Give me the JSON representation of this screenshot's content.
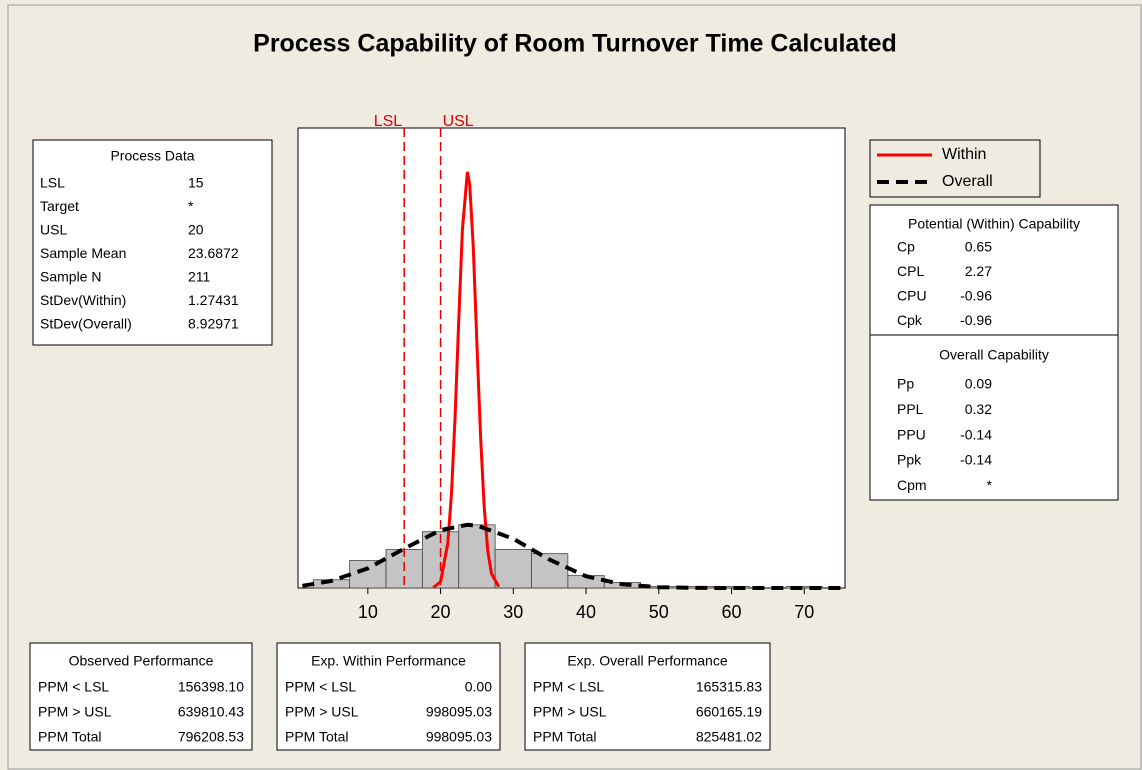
{
  "title": "Process Capability of Room Turnover Time Calculated",
  "process_data": {
    "header": "Process Data",
    "rows": [
      [
        "LSL",
        "15"
      ],
      [
        "Target",
        "*"
      ],
      [
        "USL",
        "20"
      ],
      [
        "Sample Mean",
        "23.6872"
      ],
      [
        "Sample N",
        "211"
      ],
      [
        "StDev(Within)",
        "1.27431"
      ],
      [
        "StDev(Overall)",
        "8.92971"
      ]
    ]
  },
  "potential_capability": {
    "header": "Potential (Within) Capability",
    "rows": [
      [
        "Cp",
        "0.65"
      ],
      [
        "CPL",
        "2.27"
      ],
      [
        "CPU",
        "-0.96"
      ],
      [
        "Cpk",
        "-0.96"
      ]
    ]
  },
  "overall_capability": {
    "header": "Overall Capability",
    "rows": [
      [
        "Pp",
        "0.09"
      ],
      [
        "PPL",
        "0.32"
      ],
      [
        "PPU",
        "-0.14"
      ],
      [
        "Ppk",
        "-0.14"
      ],
      [
        "Cpm",
        "*"
      ]
    ]
  },
  "performance": [
    {
      "header": "Observed Performance",
      "rows": [
        [
          "PPM < LSL",
          "156398.10"
        ],
        [
          "PPM > USL",
          "639810.43"
        ],
        [
          "PPM Total",
          "796208.53"
        ]
      ]
    },
    {
      "header": "Exp. Within Performance",
      "rows": [
        [
          "PPM < LSL",
          "0.00"
        ],
        [
          "PPM > USL",
          "998095.03"
        ],
        [
          "PPM Total",
          "998095.03"
        ]
      ]
    },
    {
      "header": "Exp. Overall Performance",
      "rows": [
        [
          "PPM < LSL",
          "165315.83"
        ],
        [
          "PPM > USL",
          "660165.19"
        ],
        [
          "PPM Total",
          "825481.02"
        ]
      ]
    }
  ],
  "chart_data": {
    "type": "histogram",
    "bins": [
      2.5,
      7.5,
      12.5,
      17.5,
      22.5,
      27.5,
      32.5,
      37.5,
      42.5,
      47.5,
      52.5,
      57.5,
      62.5,
      67.5,
      72.5
    ],
    "counts": [
      6,
      20,
      28,
      41,
      46,
      28,
      25,
      9,
      4,
      1,
      1,
      1,
      0,
      1
    ],
    "color": "#c4c4c4",
    "xlim": [
      0.4,
      75.6
    ],
    "ylim": [
      0,
      335
    ],
    "xticks": [
      10,
      20,
      30,
      40,
      50,
      60,
      70
    ],
    "spec_lines": [
      {
        "label": "LSL",
        "value": 15
      },
      {
        "label": "USL",
        "value": 20
      }
    ],
    "spec_color": "#e00000",
    "series": [
      {
        "name": "Within",
        "color": "#ff0000",
        "style": "solid",
        "x": [
          19,
          20,
          21,
          21.5,
          22,
          22.5,
          23,
          23.69,
          24,
          24.5,
          25,
          25.5,
          26,
          26.5,
          27,
          28
        ],
        "values": [
          0.35,
          4.5,
          32.6,
          69,
          125,
          196,
          261,
          303,
          294,
          248,
          178,
          110,
          58.8,
          26.7,
          10.4,
          1.0
        ]
      },
      {
        "name": "Overall",
        "color": "#000000",
        "style": "dashed",
        "x": [
          1,
          5,
          10,
          15,
          20,
          23.69,
          25,
          30,
          35,
          40,
          45,
          50,
          55,
          60,
          65,
          70,
          75
        ],
        "values": [
          1.6,
          5.2,
          14.3,
          28.7,
          42.2,
          46,
          45.5,
          35.8,
          20.6,
          8.6,
          2.7,
          0.6,
          0.1,
          0,
          0,
          0,
          0
        ]
      }
    ]
  }
}
